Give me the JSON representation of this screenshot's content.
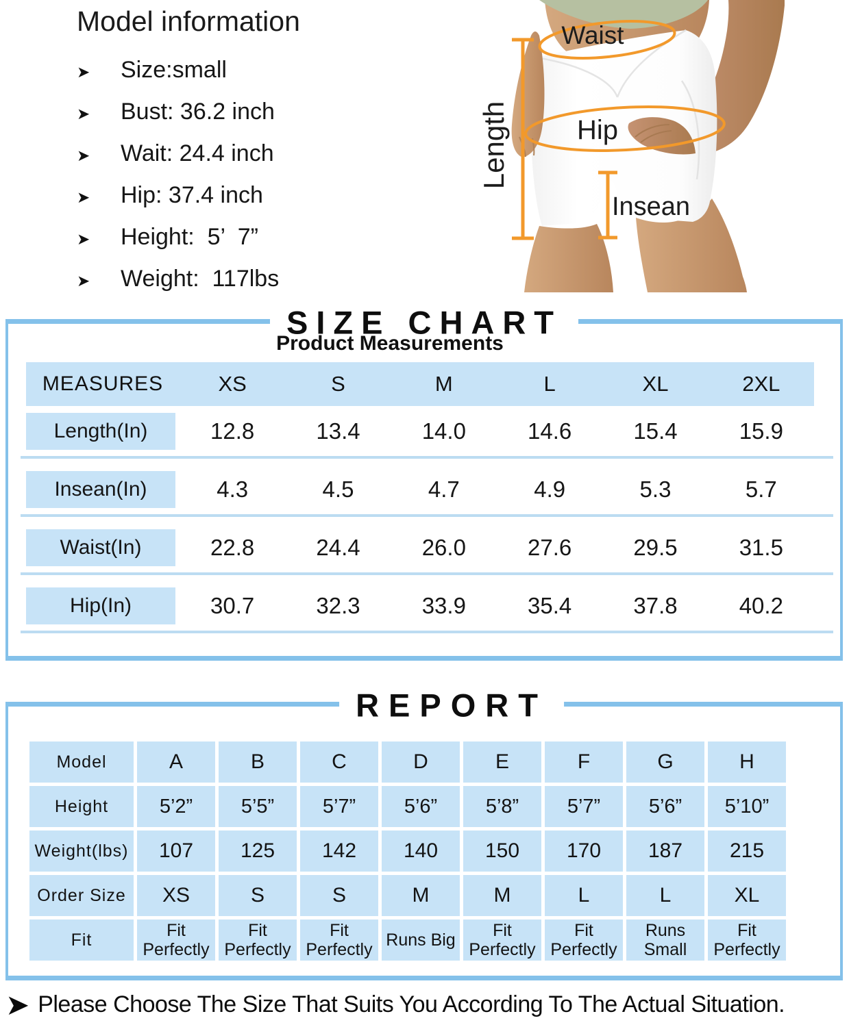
{
  "colors": {
    "accent_blue": "#84c1ea",
    "cell_blue": "#c7e3f7",
    "underline_blue": "#bcdcf2",
    "annotation_orange": "#f2992b"
  },
  "icons": {
    "arrow_bullet": "➤",
    "footer_arrow": "➤"
  },
  "model_info": {
    "title": "Model information",
    "items": [
      "Size:small",
      "Bust: 36.2 inch",
      "Wait: 24.4 inch",
      "Hip: 37.4 inch",
      "Height:  5’  7”",
      "Weight:  117lbs"
    ]
  },
  "figure": {
    "labels": {
      "waist": "Waist",
      "hip": "Hip",
      "insean": "Insean",
      "length": "Length"
    }
  },
  "size_chart": {
    "title": "SIZE CHART",
    "subtitle": "Product Measurements",
    "columns": [
      "MEASURES",
      "XS",
      "S",
      "M",
      "L",
      "XL",
      "2XL"
    ],
    "rows": [
      {
        "label": "Length(In)",
        "values": [
          "12.8",
          "13.4",
          "14.0",
          "14.6",
          "15.4",
          "15.9"
        ]
      },
      {
        "label": "Insean(In)",
        "values": [
          "4.3",
          "4.5",
          "4.7",
          "4.9",
          "5.3",
          "5.7"
        ]
      },
      {
        "label": "Waist(In)",
        "values": [
          "22.8",
          "24.4",
          "26.0",
          "27.6",
          "29.5",
          "31.5"
        ]
      },
      {
        "label": "Hip(In)",
        "values": [
          "30.7",
          "32.3",
          "33.9",
          "35.4",
          "37.8",
          "40.2"
        ]
      }
    ]
  },
  "report": {
    "title": "REPORT",
    "rows": [
      {
        "label": "Model",
        "values": [
          "A",
          "B",
          "C",
          "D",
          "E",
          "F",
          "G",
          "H"
        ]
      },
      {
        "label": "Height",
        "values": [
          "5’2”",
          "5’5”",
          "5’7”",
          "5’6”",
          "5’8”",
          "5’7”",
          "5’6”",
          "5’10”"
        ]
      },
      {
        "label": "Weight(lbs)",
        "values": [
          "107",
          "125",
          "142",
          "140",
          "150",
          "170",
          "187",
          "215"
        ]
      },
      {
        "label": "Order Size",
        "values": [
          "XS",
          "S",
          "S",
          "M",
          "M",
          "L",
          "L",
          "XL"
        ]
      },
      {
        "label": "Fit",
        "values": [
          "Fit Perfectly",
          "Fit Perfectly",
          "Fit Perfectly",
          "Runs Big",
          "Fit Perfectly",
          "Fit Perfectly",
          "Runs Small",
          "Fit Perfectly"
        ]
      }
    ]
  },
  "footer": {
    "note": "Please Choose The Size That Suits You According To The Actual Situation."
  }
}
